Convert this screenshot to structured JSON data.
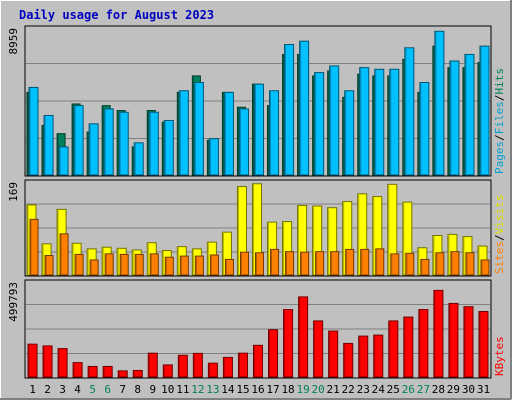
{
  "chart_data": [
    {
      "type": "bar",
      "panel": "hits-files-pages",
      "title": "Daily usage for August 2023",
      "categories": [
        "1",
        "2",
        "3",
        "4",
        "5",
        "6",
        "7",
        "8",
        "9",
        "10",
        "11",
        "12",
        "13",
        "14",
        "15",
        "16",
        "17",
        "18",
        "19",
        "20",
        "21",
        "22",
        "23",
        "24",
        "25",
        "26",
        "27",
        "28",
        "29",
        "30",
        "31"
      ],
      "weekend_days": [
        "5",
        "6",
        "12",
        "13",
        "19",
        "20",
        "26",
        "27"
      ],
      "ymax_label": "8959",
      "ylim": [
        0,
        8959
      ],
      "grid": true,
      "series": [
        {
          "name": "Hits",
          "color": "#00805C",
          "values": [
            5000,
            3000,
            2500,
            4300,
            2600,
            4200,
            3900,
            1700,
            3900,
            3200,
            5000,
            6000,
            2100,
            5000,
            4100,
            5500,
            4200,
            7300,
            7300,
            6000,
            6300,
            4700,
            6100,
            6000,
            6000,
            7000,
            5000,
            7800,
            6500,
            6500,
            6800
          ]
        },
        {
          "name": "Files",
          "color": "#00C0FF",
          "values": [
            5300,
            3600,
            1700,
            4200,
            3100,
            4000,
            3800,
            1950,
            3800,
            3300,
            5100,
            5600,
            2200,
            5000,
            4000,
            5500,
            5100,
            7900,
            8100,
            6200,
            6600,
            5100,
            6500,
            6400,
            6400,
            7700,
            5600,
            8700,
            6900,
            7300,
            7800
          ]
        },
        {
          "name": "Pages",
          "color": "#00C0FF",
          "values": [
            0,
            0,
            0,
            0,
            0,
            0,
            0,
            0,
            0,
            0,
            0,
            0,
            0,
            0,
            0,
            0,
            0,
            0,
            0,
            0,
            0,
            0,
            0,
            0,
            0,
            0,
            0,
            0,
            0,
            0,
            0
          ]
        }
      ],
      "legend": [
        "Pages",
        "Files",
        "Hits"
      ]
    },
    {
      "type": "bar",
      "panel": "visits-sites",
      "categories": [
        "1",
        "2",
        "3",
        "4",
        "5",
        "6",
        "7",
        "8",
        "9",
        "10",
        "11",
        "12",
        "13",
        "14",
        "15",
        "16",
        "17",
        "18",
        "19",
        "20",
        "21",
        "22",
        "23",
        "24",
        "25",
        "26",
        "27",
        "28",
        "29",
        "30",
        "31"
      ],
      "ymax_label": "169",
      "ylim": [
        0,
        169
      ],
      "grid": true,
      "series": [
        {
          "name": "Visits",
          "color": "#FFFF00",
          "values": [
            126,
            56,
            118,
            57,
            47,
            50,
            48,
            45,
            58,
            44,
            51,
            47,
            59,
            77,
            159,
            164,
            95,
            96,
            125,
            124,
            121,
            132,
            146,
            141,
            163,
            131,
            49,
            71,
            73,
            69,
            52
          ]
        },
        {
          "name": "Sites",
          "color": "#FF8000",
          "values": [
            100,
            35,
            74,
            37,
            27,
            38,
            37,
            37,
            38,
            32,
            34,
            34,
            36,
            28,
            41,
            40,
            46,
            42,
            41,
            42,
            42,
            46,
            46,
            47,
            38,
            39,
            28,
            40,
            42,
            40,
            27
          ]
        }
      ],
      "legend": [
        "Sites",
        "Visits"
      ]
    },
    {
      "type": "bar",
      "panel": "kbytes",
      "categories": [
        "1",
        "2",
        "3",
        "4",
        "5",
        "6",
        "7",
        "8",
        "9",
        "10",
        "11",
        "12",
        "13",
        "14",
        "15",
        "16",
        "17",
        "18",
        "19",
        "20",
        "21",
        "22",
        "23",
        "24",
        "25",
        "26",
        "27",
        "28",
        "29",
        "30",
        "31"
      ],
      "ymax_label": "499793",
      "ylim": [
        0,
        499793
      ],
      "grid": true,
      "series": [
        {
          "name": "KBytes",
          "color": "#FF0000",
          "values": [
            171000,
            162000,
            148000,
            75000,
            55000,
            55000,
            32000,
            34000,
            124000,
            63000,
            113000,
            123000,
            72000,
            102000,
            124000,
            165000,
            246000,
            351000,
            417000,
            292000,
            239000,
            175000,
            213000,
            218000,
            292000,
            312000,
            351000,
            451000,
            383000,
            366000,
            341000
          ]
        }
      ],
      "legend": [
        "KBytes"
      ]
    }
  ]
}
